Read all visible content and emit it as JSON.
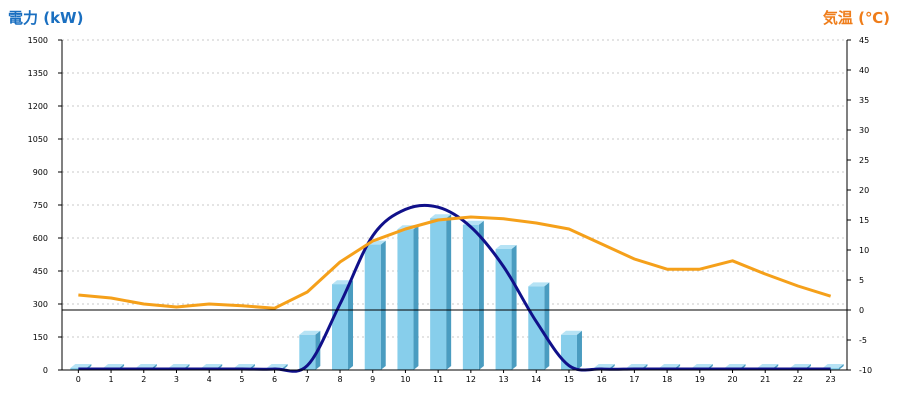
{
  "chart_data": {
    "type": "bar",
    "left_axis_title": "電力 (kW)",
    "right_axis_title": "気温 (℃)",
    "colors": {
      "left_title": "#1a6fc0",
      "right_title": "#ef7d1a",
      "bar_front": "#87ceeb",
      "bar_side": "#4a9cc0",
      "bar_top": "#b6e3f5",
      "forecast_line": "#10108a",
      "temp_line": "#f5a01a"
    },
    "categories": [
      "0",
      "1",
      "2",
      "3",
      "4",
      "5",
      "6",
      "7",
      "8",
      "9",
      "10",
      "11",
      "12",
      "13",
      "14",
      "15",
      "16",
      "17",
      "18",
      "19",
      "20",
      "21",
      "22",
      "23"
    ],
    "left_ylim": [
      0,
      1500
    ],
    "left_ticks": [
      "0",
      "150",
      "300",
      "450",
      "600",
      "750",
      "900",
      "1050",
      "1200",
      "1350",
      "1500"
    ],
    "right_ylim": [
      -10,
      45
    ],
    "right_ticks": [
      "-10",
      "-5",
      "0",
      "5",
      "10",
      "15",
      "20",
      "25",
      "30",
      "35",
      "40",
      "45"
    ],
    "grid": true,
    "series": [
      {
        "kind": "bar",
        "axis": "left",
        "values": [
          0,
          0,
          0,
          0,
          0,
          0,
          0,
          160,
          390,
          570,
          640,
          690,
          660,
          550,
          380,
          160,
          0,
          0,
          0,
          0,
          0,
          0,
          0,
          0
        ]
      },
      {
        "kind": "line",
        "axis": "left",
        "values": [
          0,
          0,
          0,
          0,
          0,
          0,
          0,
          20,
          300,
          610,
          730,
          740,
          650,
          470,
          220,
          20,
          0,
          0,
          0,
          0,
          0,
          0,
          0,
          0
        ]
      },
      {
        "kind": "line",
        "axis": "right",
        "values": [
          2.5,
          2,
          1,
          0.5,
          1,
          0.7,
          0.3,
          3,
          8,
          11.5,
          13.5,
          15,
          15.5,
          15.2,
          14.5,
          13.5,
          11,
          8.5,
          6.8,
          6.8,
          8.2,
          6,
          4,
          2.3
        ]
      }
    ]
  }
}
